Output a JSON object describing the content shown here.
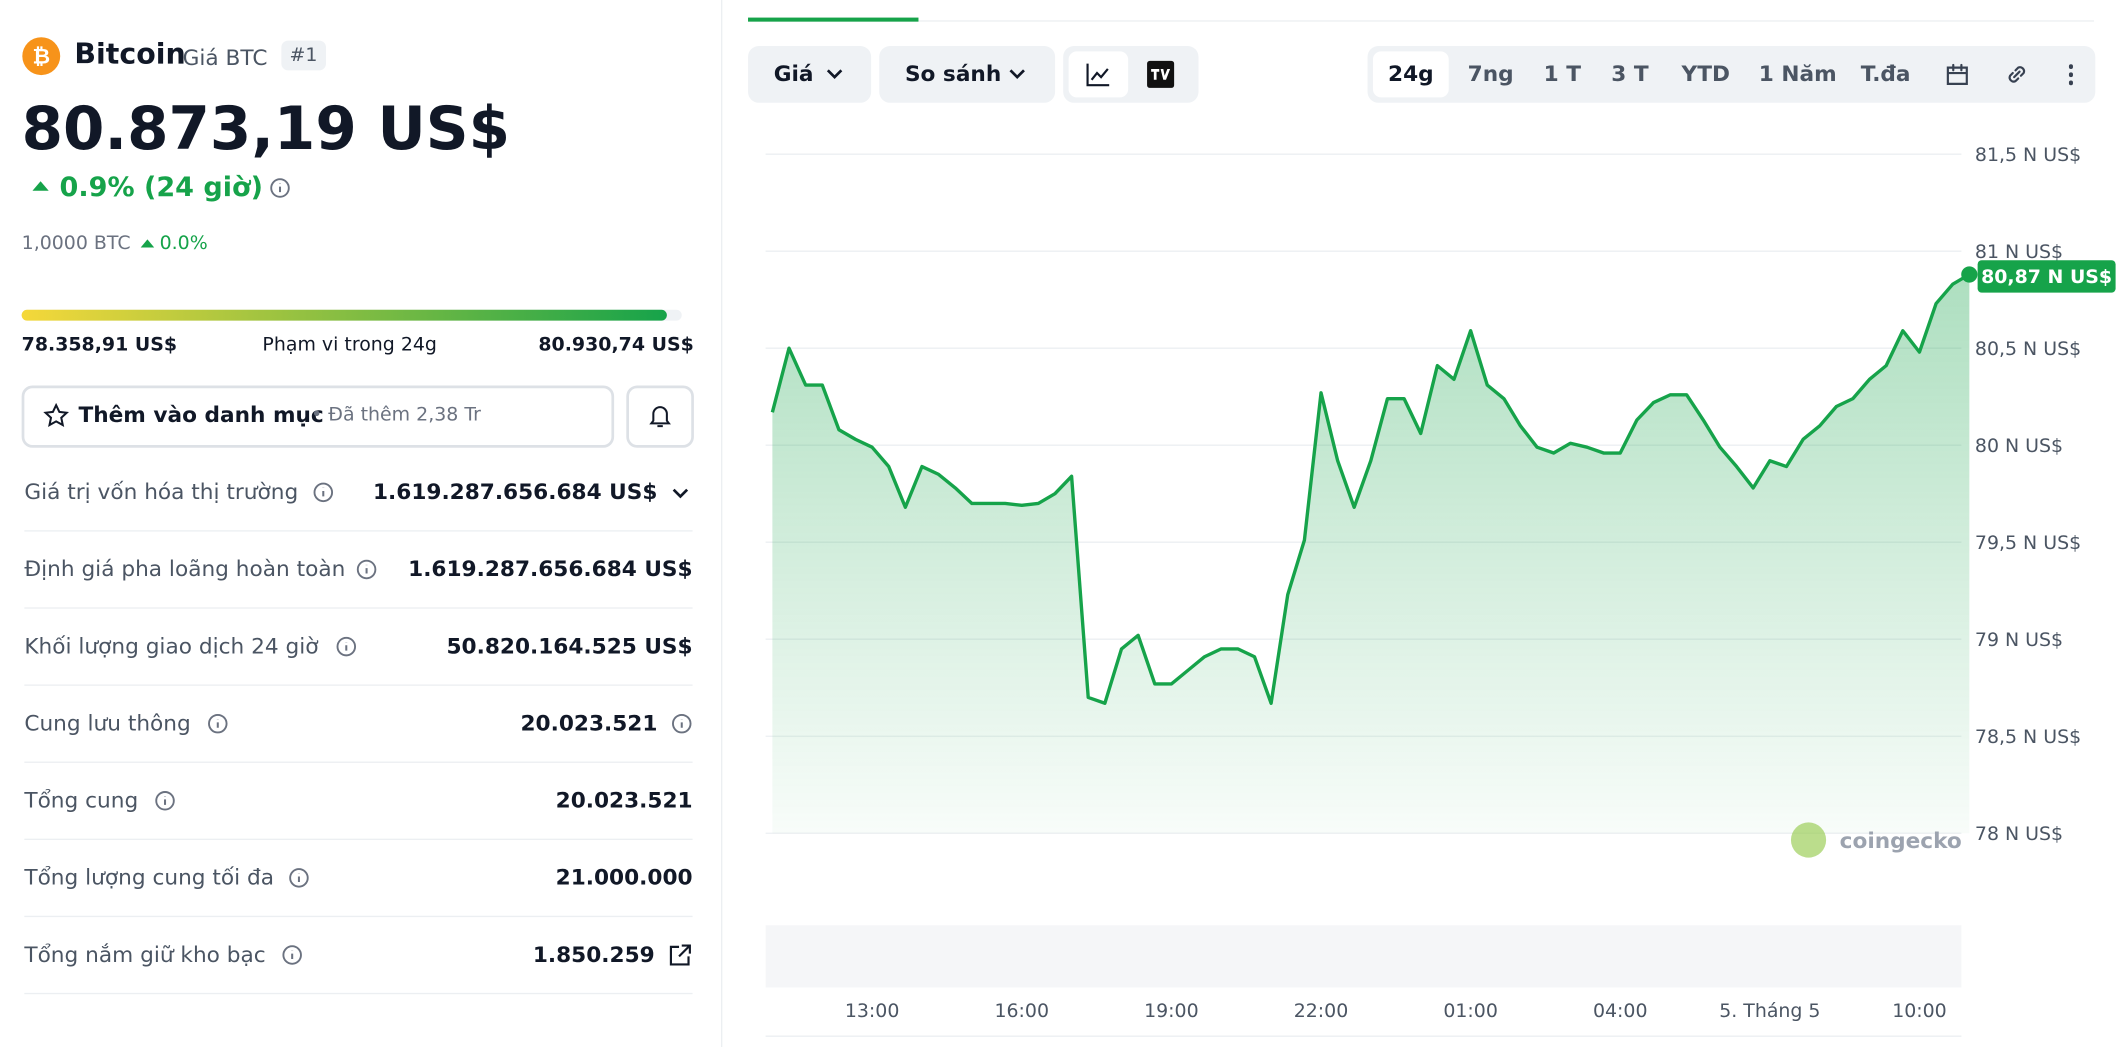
{
  "header": {
    "name": "Bitcoin",
    "subtitle": "Giá BTC",
    "rank": "#1",
    "price": "80.873,19 US$",
    "change": "0.9% (24 giờ)",
    "btc_amount": "1,0000 BTC",
    "btc_change": "0.0%"
  },
  "range": {
    "low": "78.358,91 US$",
    "label": "Phạm vi trong 24g",
    "high": "80.930,74 US$"
  },
  "watchlist": {
    "button": "Thêm vào danh mục",
    "added": "• Đã thêm 2,38 Tr"
  },
  "stats": [
    {
      "label": "Giá trị vốn hóa thị trường",
      "value": "1.619.287.656.684 US$"
    },
    {
      "label": "Định giá pha loãng hoàn toàn",
      "value": "1.619.287.656.684 US$"
    },
    {
      "label": "Khối lượng giao dịch 24 giờ",
      "value": "50.820.164.525 US$"
    },
    {
      "label": "Cung lưu thông",
      "value": "20.023.521"
    },
    {
      "label": "Tổng cung",
      "value": "20.023.521"
    },
    {
      "label": "Tổng lượng cung tối đa",
      "value": "21.000.000"
    },
    {
      "label": "Tổng nắm giữ kho bạc",
      "value": "1.850.259"
    }
  ],
  "toolbar": {
    "price": "Giá",
    "compare": "So sánh",
    "ranges": [
      "24g",
      "7ng",
      "1 T",
      "3 T",
      "YTD",
      "1 Năm",
      "T.đa"
    ]
  },
  "chart_data": {
    "type": "line",
    "watermark": "coingecko",
    "categories": [
      null,
      null,
      null,
      null,
      null,
      null,
      "13:00",
      null,
      null,
      null,
      null,
      null,
      null,
      null,
      null,
      "16:00",
      null,
      null,
      null,
      null,
      null,
      null,
      null,
      null,
      "19:00",
      null,
      null,
      null,
      null,
      null,
      null,
      null,
      null,
      "22:00",
      null,
      null,
      null,
      null,
      null,
      null,
      null,
      null,
      "01:00",
      null,
      null,
      null,
      null,
      null,
      null,
      null,
      null,
      "04:00",
      null,
      null,
      null,
      null,
      null,
      null,
      null,
      null,
      "5. Tháng 5",
      null,
      null,
      null,
      null,
      null,
      null,
      null,
      null,
      "10:00",
      null,
      null,
      null
    ],
    "series": [
      {
        "name": "Giá",
        "color": "#16a34a",
        "values": [
          80.17,
          80.5,
          80.31,
          80.31,
          80.08,
          80.03,
          79.99,
          79.89,
          79.68,
          79.89,
          79.85,
          79.78,
          79.7,
          79.7,
          79.7,
          79.69,
          79.7,
          79.75,
          79.84,
          78.7,
          78.67,
          78.95,
          79.02,
          78.77,
          78.77,
          78.84,
          78.91,
          78.95,
          78.95,
          78.91,
          78.67,
          79.23,
          79.51,
          80.27,
          79.92,
          79.68,
          79.92,
          80.24,
          80.24,
          80.06,
          80.41,
          80.34,
          80.59,
          80.31,
          80.24,
          80.1,
          79.99,
          79.96,
          80.01,
          79.99,
          79.96,
          79.96,
          80.13,
          80.22,
          80.26,
          80.26,
          80.13,
          79.99,
          79.89,
          79.78,
          79.92,
          79.89,
          80.03,
          80.1,
          80.2,
          80.24,
          80.34,
          80.41,
          80.59,
          80.48,
          80.73,
          80.83,
          80.88
        ]
      }
    ],
    "ylim": [
      78,
      81.5
    ],
    "yticks": [
      {
        "value": 78,
        "label": "78 N US$"
      },
      {
        "value": 78.5,
        "label": "78,5 N US$"
      },
      {
        "value": 79,
        "label": "79 N US$"
      },
      {
        "value": 79.5,
        "label": "79,5 N US$"
      },
      {
        "value": 80,
        "label": "80 N US$"
      },
      {
        "value": 80.5,
        "label": "80,5 N US$"
      },
      {
        "value": 81,
        "label": "81 N US$"
      },
      {
        "value": 81.5,
        "label": "81,5 N US$"
      }
    ],
    "grid": true,
    "annotation": {
      "value": 80.87,
      "label": "80,87 N US$"
    }
  }
}
